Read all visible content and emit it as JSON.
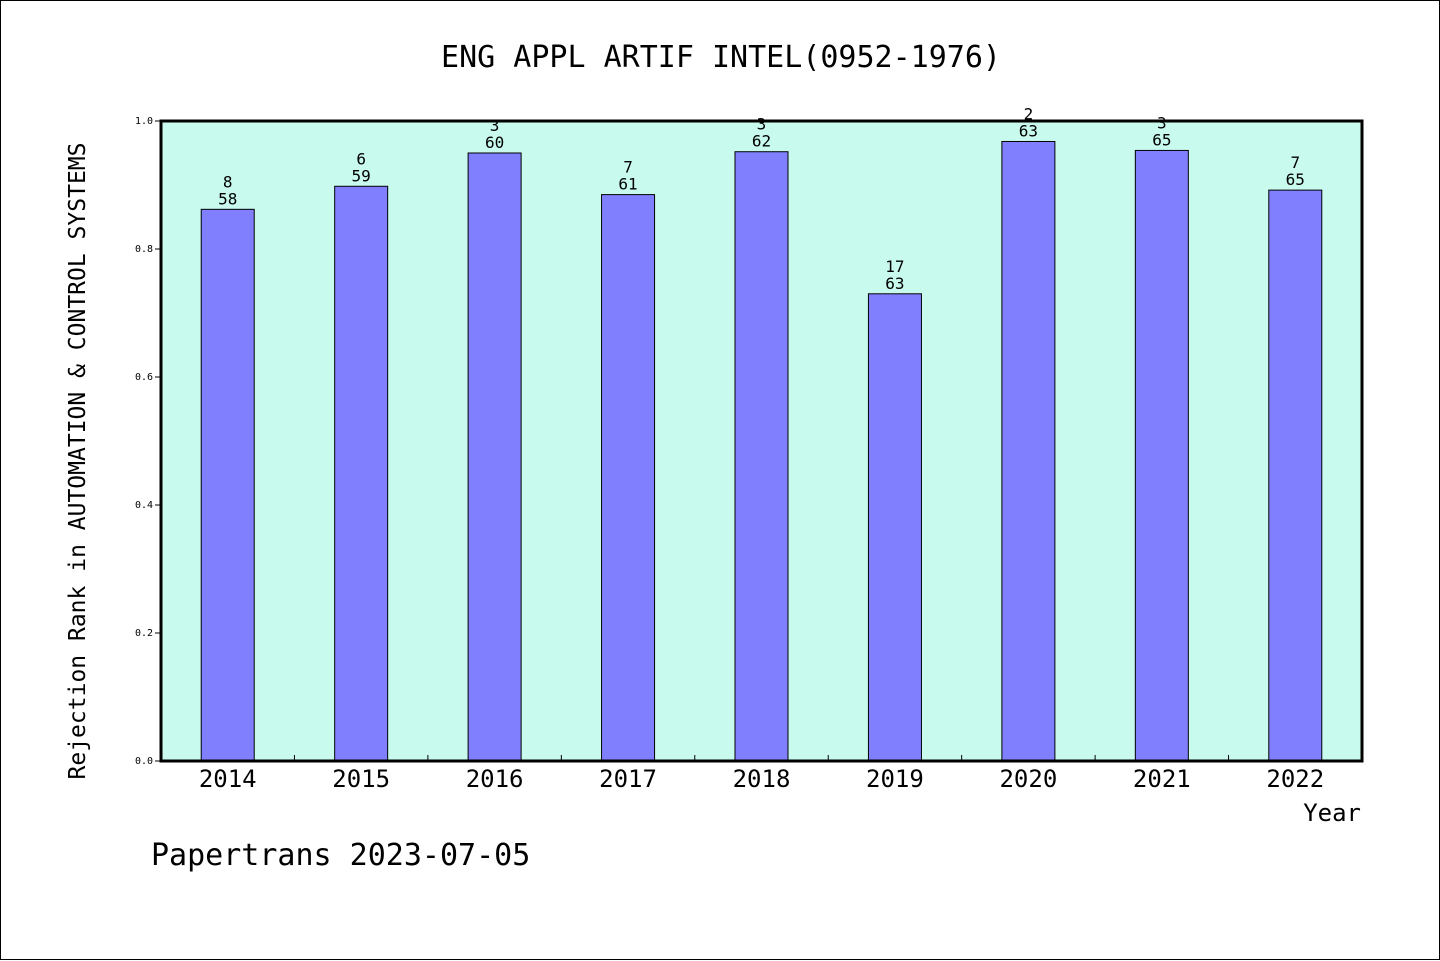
{
  "chart_data": {
    "type": "bar",
    "title": "ENG APPL ARTIF INTEL(0952-1976)",
    "xlabel": "Year",
    "ylabel": "Rejection Rank in AUTOMATION & CONTROL SYSTEMS",
    "ylim": [
      0,
      1
    ],
    "yticks": [
      "0.0",
      "0.2",
      "0.4",
      "0.6",
      "0.8",
      "1.0"
    ],
    "categories": [
      "2014",
      "2015",
      "2016",
      "2017",
      "2018",
      "2019",
      "2020",
      "2021",
      "2022"
    ],
    "values": [
      0.862,
      0.898,
      0.95,
      0.885,
      0.952,
      0.73,
      0.968,
      0.954,
      0.892
    ],
    "rank": [
      "8",
      "6",
      "3",
      "7",
      "3",
      "17",
      "2",
      "3",
      "7"
    ],
    "total": [
      "58",
      "59",
      "60",
      "61",
      "62",
      "63",
      "63",
      "65",
      "65"
    ],
    "grid": false,
    "colors": {
      "bar": "#8080ff",
      "plot_bg": "#c8fbee"
    }
  },
  "footer": "Papertrans 2023-07-05"
}
